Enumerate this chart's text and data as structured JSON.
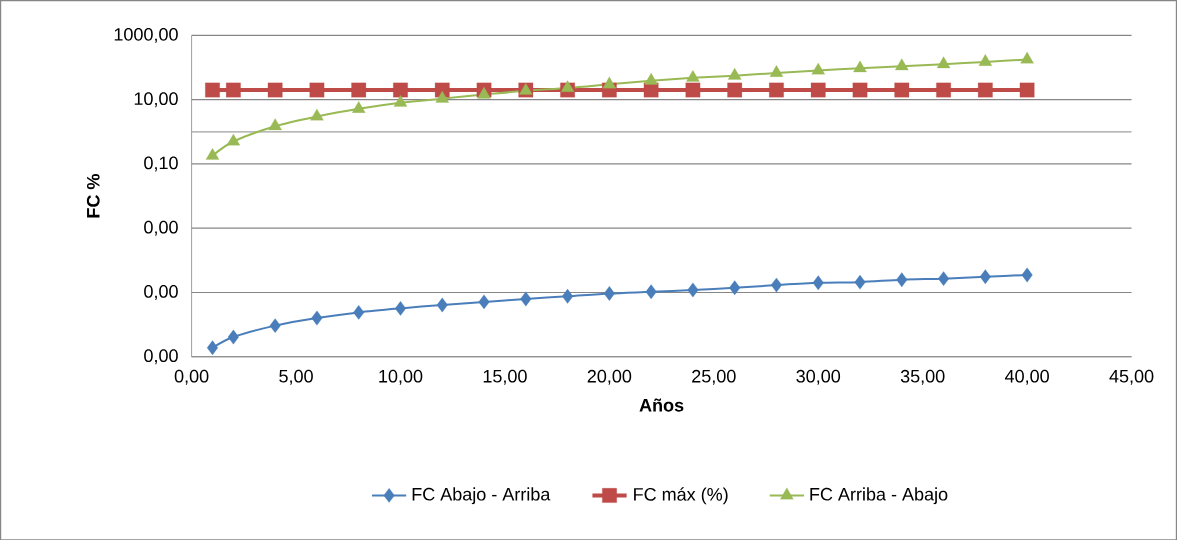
{
  "chart_data": {
    "type": "line",
    "xlabel": "Años",
    "ylabel": "FC %",
    "log": "y",
    "grid": "y",
    "legend": "bottom",
    "line_style": "solid",
    "xlim": [
      0,
      45
    ],
    "xticks": [
      {
        "value": 0,
        "label": "0,00"
      },
      {
        "value": 5,
        "label": "5,00"
      },
      {
        "value": 10,
        "label": "10,00"
      },
      {
        "value": 15,
        "label": "15,00"
      },
      {
        "value": 20,
        "label": "20,00"
      },
      {
        "value": 25,
        "label": "25,00"
      },
      {
        "value": 30,
        "label": "30,00"
      },
      {
        "value": 35,
        "label": "35,00"
      },
      {
        "value": 40,
        "label": "40,00"
      },
      {
        "value": 45,
        "label": "45,00"
      }
    ],
    "ylim": [
      1e-07,
      1000
    ],
    "yticks": [
      {
        "value": 1e-07,
        "label": "0,00"
      },
      {
        "value": 1e-05,
        "label": "0,00"
      },
      {
        "value": 0.001,
        "label": "0,00"
      },
      {
        "value": 0.1,
        "label": "0,10"
      },
      {
        "value": 10,
        "label": "10,00"
      },
      {
        "value": 1000,
        "label": "1000,00"
      }
    ],
    "ref_lines": [
      {
        "axis": "y",
        "value": 1,
        "color": "#a0a0a0"
      }
    ],
    "x": [
      1,
      2,
      4,
      6,
      8,
      10,
      12,
      14,
      16,
      18,
      20,
      22,
      24,
      26,
      28,
      30,
      32,
      34,
      36,
      38,
      40
    ],
    "series": [
      {
        "name": "FC Abajo - Arriba",
        "color": "#4a7ebb",
        "marker": "diamond",
        "values": [
          1.9e-07,
          4.1e-07,
          9.3e-07,
          1.6e-06,
          2.4e-06,
          3.2e-06,
          4.1e-06,
          5.1e-06,
          6.3e-06,
          7.6e-06,
          9.3e-06,
          1.05e-05,
          1.2e-05,
          1.4e-05,
          1.7e-05,
          2e-05,
          2.1e-05,
          2.5e-05,
          2.7e-05,
          3.1e-05,
          3.5e-05
        ]
      },
      {
        "name": "FC máx  (%)",
        "color": "#be4b48",
        "marker": "square",
        "values": [
          20,
          20,
          20,
          20,
          20,
          20,
          20,
          20,
          20,
          20,
          20,
          20,
          20,
          20,
          20,
          20,
          20,
          20,
          20,
          20,
          20
        ]
      },
      {
        "name": "FC Arriba - Abajo",
        "color": "#98b954",
        "marker": "triangle",
        "values": [
          0.18,
          0.5,
          1.5,
          3.0,
          5.2,
          8.0,
          10.8,
          14.4,
          19,
          23,
          30,
          39,
          48,
          56,
          68,
          81,
          95,
          110,
          127,
          150,
          178
        ]
      }
    ]
  }
}
